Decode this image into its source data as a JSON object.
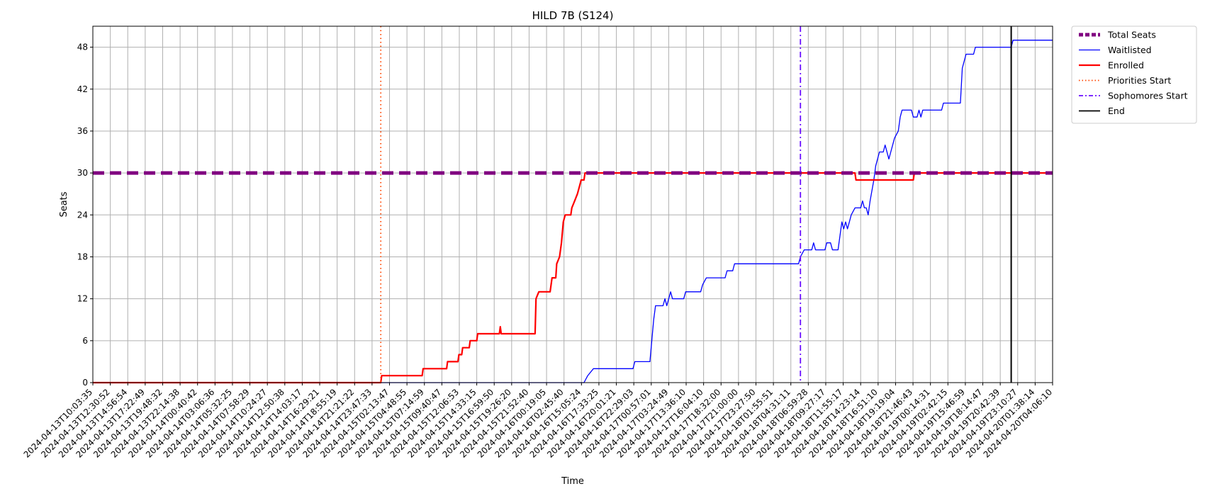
{
  "chart_data": {
    "type": "line",
    "title": "HILD 7B (S124)",
    "xlabel": "Time",
    "ylabel": "Seats",
    "ylim": [
      0,
      51
    ],
    "yticks": [
      0,
      6,
      12,
      18,
      24,
      30,
      36,
      42,
      48
    ],
    "grid": true,
    "legend_position": "outside-top-right",
    "x_ticks": [
      "2024-04-13T10:03:35",
      "2024-04-13T12:30:52",
      "2024-04-13T14:56:54",
      "2024-04-13T17:22:49",
      "2024-04-13T19:48:32",
      "2024-04-13T22:14:38",
      "2024-04-14T00:40:42",
      "2024-04-14T03:06:36",
      "2024-04-14T05:32:25",
      "2024-04-14T07:58:29",
      "2024-04-14T10:24:27",
      "2024-04-14T12:50:38",
      "2024-04-14T14:03:17",
      "2024-04-14T16:29:21",
      "2024-04-14T18:55:19",
      "2024-04-14T21:21:22",
      "2024-04-14T23:47:33",
      "2024-04-15T02:13:47",
      "2024-04-15T04:48:55",
      "2024-04-15T07:14:59",
      "2024-04-15T09:40:47",
      "2024-04-15T12:06:53",
      "2024-04-15T14:33:15",
      "2024-04-15T16:59:50",
      "2024-04-15T19:26:20",
      "2024-04-15T21:52:40",
      "2024-04-16T00:19:05",
      "2024-04-16T02:45:40",
      "2024-04-16T15:05:24",
      "2024-04-16T17:33:25",
      "2024-04-16T20:01:21",
      "2024-04-16T22:29:03",
      "2024-04-17T00:57:01",
      "2024-04-17T03:24:49",
      "2024-04-17T13:36:10",
      "2024-04-17T16:04:10",
      "2024-04-17T18:32:00",
      "2024-04-17T21:00:00",
      "2024-04-17T23:27:50",
      "2024-04-18T01:55:51",
      "2024-04-18T04:31:11",
      "2024-04-18T06:59:28",
      "2024-04-18T09:27:17",
      "2024-04-18T11:55:17",
      "2024-04-18T14:23:14",
      "2024-04-18T16:51:10",
      "2024-04-18T19:19:04",
      "2024-04-18T21:46:43",
      "2024-04-19T00:14:31",
      "2024-04-19T02:42:15",
      "2024-04-19T15:46:59",
      "2024-04-19T18:14:47",
      "2024-04-19T20:42:39",
      "2024-04-19T23:10:27",
      "2024-04-20T01:38:14",
      "2024-04-20T04:06:10"
    ],
    "x_domain": [
      0,
      51
    ],
    "series": [
      {
        "name": "Total Seats",
        "color": "#800080",
        "style": "dashed-thick",
        "points": [
          [
            0,
            30
          ],
          [
            51,
            30
          ]
        ]
      },
      {
        "name": "Waitlisted",
        "color": "#0000ff",
        "style": "solid-thin",
        "points": [
          [
            0,
            0
          ],
          [
            26.1,
            0
          ],
          [
            26.3,
            1
          ],
          [
            26.6,
            2
          ],
          [
            28.7,
            2
          ],
          [
            28.8,
            3
          ],
          [
            29.6,
            3
          ],
          [
            29.8,
            9
          ],
          [
            29.9,
            11
          ],
          [
            30.3,
            11
          ],
          [
            30.4,
            12
          ],
          [
            30.5,
            11
          ],
          [
            30.6,
            12
          ],
          [
            30.7,
            13
          ],
          [
            30.8,
            12
          ],
          [
            31.4,
            12
          ],
          [
            31.5,
            13
          ],
          [
            32.3,
            13
          ],
          [
            32.4,
            14
          ],
          [
            32.6,
            15
          ],
          [
            33.6,
            15
          ],
          [
            33.7,
            16
          ],
          [
            34.0,
            16
          ],
          [
            34.1,
            17
          ],
          [
            37.5,
            17
          ],
          [
            37.6,
            18
          ],
          [
            37.8,
            19
          ],
          [
            38.2,
            19
          ],
          [
            38.3,
            20
          ],
          [
            38.4,
            19
          ],
          [
            38.9,
            19
          ],
          [
            39.0,
            20
          ],
          [
            39.2,
            20
          ],
          [
            39.3,
            19
          ],
          [
            39.6,
            19
          ],
          [
            39.8,
            23
          ],
          [
            39.9,
            22
          ],
          [
            40.0,
            23
          ],
          [
            40.1,
            22
          ],
          [
            40.2,
            23
          ],
          [
            40.3,
            24
          ],
          [
            40.5,
            25
          ],
          [
            40.8,
            25
          ],
          [
            40.9,
            26
          ],
          [
            41.0,
            25
          ],
          [
            41.1,
            25
          ],
          [
            41.2,
            24
          ],
          [
            41.3,
            26
          ],
          [
            41.5,
            29
          ],
          [
            41.6,
            31
          ],
          [
            41.8,
            33
          ],
          [
            42.0,
            33
          ],
          [
            42.1,
            34
          ],
          [
            42.3,
            32
          ],
          [
            42.4,
            33
          ],
          [
            42.6,
            35
          ],
          [
            42.8,
            36
          ],
          [
            42.9,
            38
          ],
          [
            43.0,
            39
          ],
          [
            43.5,
            39
          ],
          [
            43.6,
            38
          ],
          [
            43.8,
            38
          ],
          [
            43.9,
            39
          ],
          [
            44.0,
            38
          ],
          [
            44.1,
            39
          ],
          [
            45.1,
            39
          ],
          [
            45.2,
            40
          ],
          [
            46.1,
            40
          ],
          [
            46.2,
            45
          ],
          [
            46.4,
            47
          ],
          [
            46.8,
            47
          ],
          [
            46.9,
            48
          ],
          [
            48.8,
            48
          ],
          [
            48.9,
            49
          ],
          [
            51,
            49
          ]
        ]
      },
      {
        "name": "Enrolled",
        "color": "#ff0000",
        "style": "solid-thick",
        "points": [
          [
            0,
            0
          ],
          [
            15.3,
            0
          ],
          [
            15.35,
            1
          ],
          [
            17.5,
            1
          ],
          [
            17.55,
            2
          ],
          [
            18.8,
            2
          ],
          [
            18.85,
            3
          ],
          [
            19.4,
            3
          ],
          [
            19.45,
            4
          ],
          [
            19.6,
            4
          ],
          [
            19.65,
            5
          ],
          [
            20.0,
            5
          ],
          [
            20.05,
            6
          ],
          [
            20.4,
            6
          ],
          [
            20.45,
            7
          ],
          [
            21.6,
            7
          ],
          [
            21.65,
            8
          ],
          [
            21.7,
            7
          ],
          [
            23.5,
            7
          ],
          [
            23.55,
            12
          ],
          [
            23.7,
            13
          ],
          [
            24.3,
            13
          ],
          [
            24.4,
            15
          ],
          [
            24.6,
            15
          ],
          [
            24.65,
            17
          ],
          [
            24.8,
            18
          ],
          [
            24.9,
            20
          ],
          [
            25.0,
            23
          ],
          [
            25.1,
            24
          ],
          [
            25.4,
            24
          ],
          [
            25.45,
            25
          ],
          [
            25.6,
            26
          ],
          [
            25.75,
            27
          ],
          [
            25.85,
            28
          ],
          [
            25.95,
            29
          ],
          [
            26.1,
            29
          ],
          [
            26.15,
            30
          ],
          [
            40.5,
            30
          ],
          [
            40.55,
            29
          ],
          [
            43.6,
            29
          ],
          [
            43.65,
            30
          ],
          [
            51,
            30
          ]
        ]
      }
    ],
    "vertical_markers": [
      {
        "name": "Priorities Start",
        "color": "#ff4500",
        "style": "dotted",
        "x": 15.3
      },
      {
        "name": "Sophomores Start",
        "color": "#6a0dff",
        "style": "dashdot",
        "x": 37.6
      },
      {
        "name": "End",
        "color": "#000000",
        "style": "solid",
        "x": 48.8
      }
    ]
  }
}
